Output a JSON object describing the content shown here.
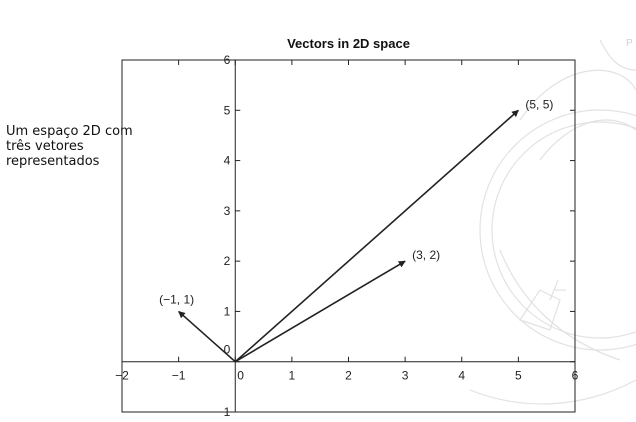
{
  "caption": "Um espaço 2D com\ntrês vetores\nrepresentados",
  "watermark_text": "P",
  "chart_data": {
    "type": "vector",
    "title": "Vectors in 2D space",
    "xlabel": "",
    "ylabel": "",
    "xlim": [
      -2,
      6
    ],
    "ylim": [
      -1,
      6
    ],
    "xticks": [
      -2,
      -1,
      0,
      1,
      2,
      3,
      4,
      5,
      6
    ],
    "yticks": [
      -1,
      0,
      1,
      2,
      3,
      4,
      5,
      6
    ],
    "origin": [
      0,
      0
    ],
    "vectors": [
      {
        "x": 5,
        "y": 5,
        "label": "(5, 5)"
      },
      {
        "x": 3,
        "y": 2,
        "label": "(3, 2)"
      },
      {
        "x": -1,
        "y": 1,
        "label": "(−1, 1)"
      }
    ],
    "grid": false,
    "legend": "none",
    "colors": {
      "axis": "#222222",
      "vector": "#222222"
    }
  }
}
